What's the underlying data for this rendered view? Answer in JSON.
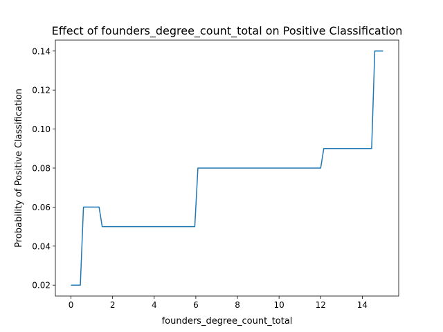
{
  "chart_data": {
    "type": "line",
    "title": "Effect of founders_degree_count_total on Positive Classification",
    "xlabel": "founders_degree_count_total",
    "ylabel": "Probability of Positive Classification",
    "xlim": [
      -0.75,
      15.75
    ],
    "ylim": [
      0.0144,
      0.1456
    ],
    "xticks": [
      0,
      2,
      4,
      6,
      8,
      10,
      12,
      14
    ],
    "xtick_labels": [
      "0",
      "2",
      "4",
      "6",
      "8",
      "10",
      "12",
      "14"
    ],
    "yticks": [
      0.02,
      0.04,
      0.06,
      0.08,
      0.1,
      0.12,
      0.14
    ],
    "ytick_labels": [
      "0.02",
      "0.04",
      "0.06",
      "0.08",
      "0.10",
      "0.12",
      "0.14"
    ],
    "grid": false,
    "legend": "none",
    "series": [
      {
        "color": "#1f77b4",
        "x": [
          0,
          0.45,
          0.6,
          1.35,
          1.5,
          5.95,
          6.1,
          12.0,
          12.15,
          14.45,
          14.6,
          15.0
        ],
        "y": [
          0.02,
          0.02,
          0.06,
          0.06,
          0.05,
          0.05,
          0.08,
          0.08,
          0.09,
          0.09,
          0.14,
          0.14
        ]
      }
    ]
  }
}
